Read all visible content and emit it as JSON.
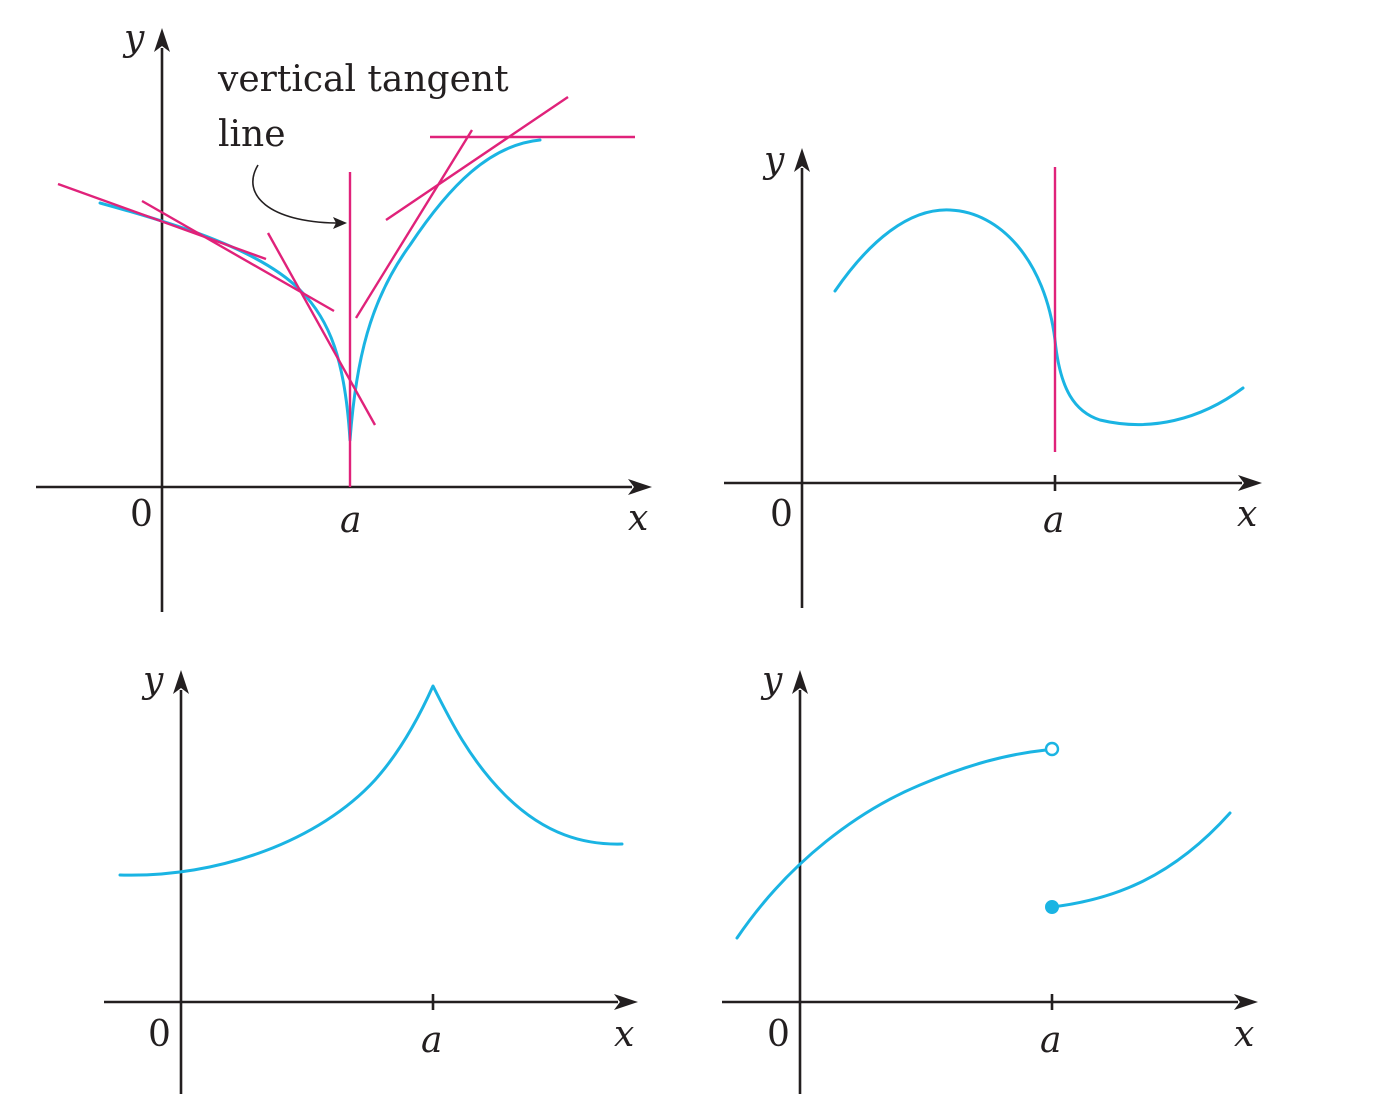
{
  "colors": {
    "curve": "#1ab4e3",
    "tangent": "#e0227a",
    "axis": "#231f20"
  },
  "annotation": {
    "line1": "vertical tangent",
    "line2": "line"
  },
  "panels": [
    {
      "id": "top-left",
      "description_type": "vertical-tangent-cusp",
      "y_label": "y",
      "x_label": "x",
      "origin_label": "0",
      "a_label": "a"
    },
    {
      "id": "top-right",
      "description_type": "vertical-tangent",
      "y_label": "y",
      "x_label": "x",
      "origin_label": "0",
      "a_label": "a"
    },
    {
      "id": "bottom-left",
      "description_type": "corner",
      "y_label": "y",
      "x_label": "x",
      "origin_label": "0",
      "a_label": "a"
    },
    {
      "id": "bottom-right",
      "description_type": "jump-discontinuity",
      "y_label": "y",
      "x_label": "x",
      "origin_label": "0",
      "a_label": "a"
    }
  ]
}
